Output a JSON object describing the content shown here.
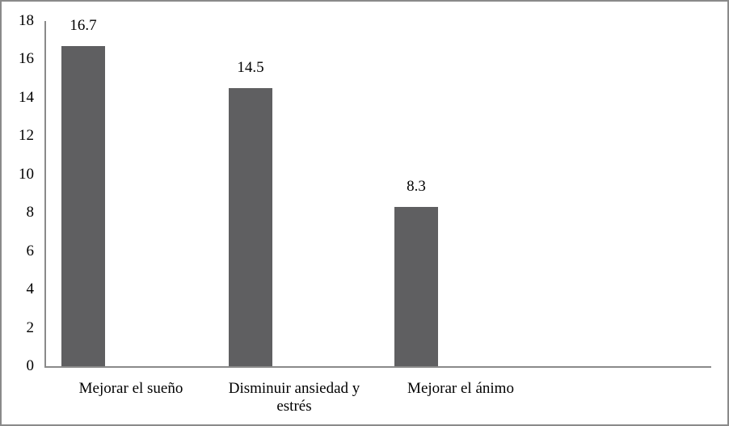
{
  "chart_data": {
    "type": "bar",
    "categories": [
      "Mejorar el sueño",
      "Disminuir ansiedad y estrés",
      "Mejorar el ánimo"
    ],
    "values": [
      16.7,
      14.5,
      8.3
    ],
    "data_labels": [
      "16.7",
      "14.5",
      "8.3"
    ],
    "title": "",
    "xlabel": "",
    "ylabel": "",
    "ylim": [
      0,
      18
    ],
    "yticks": [
      0,
      2,
      4,
      6,
      8,
      10,
      12,
      14,
      16,
      18
    ],
    "grid": false,
    "legend": "none",
    "bar_color": "#5f5f61",
    "axis_color": "#8a8a8a",
    "border_color": "#8a8a8a",
    "text_color": "#000000",
    "background_color": "#ffffff"
  }
}
